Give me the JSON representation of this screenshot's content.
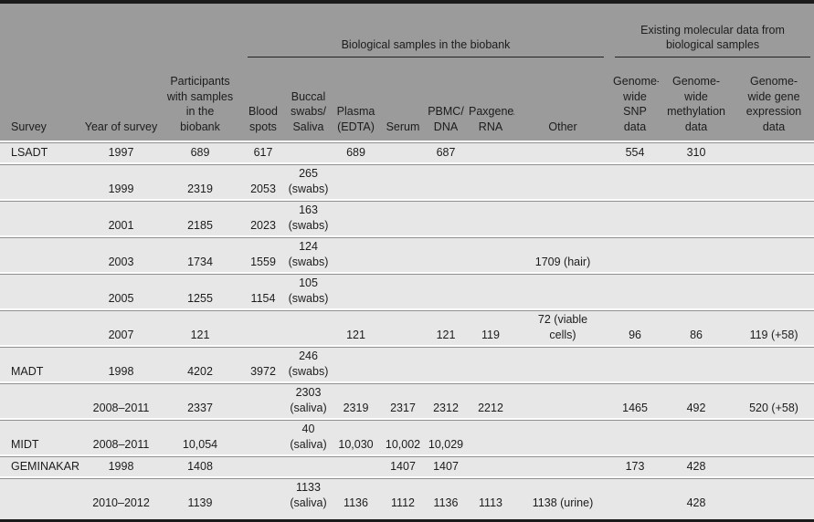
{
  "title": "Biobank samples overview table",
  "colors": {
    "header_bg": "#9b9b9b",
    "row_bg": "#e7e7e7",
    "separator": "#8f8f8f",
    "frame": "#1b1b1b",
    "text": "#1c1c1c",
    "page_bg": "#ffffff"
  },
  "table": {
    "group_headers": [
      {
        "label": "Biological samples in the biobank"
      },
      {
        "label": "Existing molecular data from\nbiological samples"
      }
    ],
    "columns": [
      {
        "key": "survey",
        "label": "Survey"
      },
      {
        "key": "year",
        "label": "Year of survey"
      },
      {
        "key": "participants",
        "label": "Participants\nwith samples\nin the\nbiobank"
      },
      {
        "key": "blood_spots",
        "label": "Blood\nspots"
      },
      {
        "key": "buccal",
        "label": "Buccal\nswabs/\nSaliva"
      },
      {
        "key": "plasma",
        "label": "Plasma\n(EDTA)"
      },
      {
        "key": "serum",
        "label": "Serum"
      },
      {
        "key": "pbmc",
        "label": "PBMC/\nDNA"
      },
      {
        "key": "paxgene",
        "label": "Paxgene/\nRNA"
      },
      {
        "key": "other",
        "label": "Other"
      },
      {
        "key": "snp",
        "label": "Genome-\nwide\nSNP\ndata"
      },
      {
        "key": "methylation",
        "label": "Genome-\nwide\nmethylation\ndata"
      },
      {
        "key": "gene_expression",
        "label": "Genome-\nwide gene\nexpression\ndata"
      }
    ],
    "rows": [
      {
        "survey": "LSADT",
        "year": "1997",
        "participants": "689",
        "blood_spots": "617",
        "buccal": "",
        "plasma": "689",
        "serum": "",
        "pbmc": "687",
        "paxgene": "",
        "other": "",
        "snp": "554",
        "methylation": "310",
        "gene_expression": ""
      },
      {
        "survey": "",
        "year": "1999",
        "participants": "2319",
        "blood_spots": "2053",
        "buccal": "265\n(swabs)",
        "plasma": "",
        "serum": "",
        "pbmc": "",
        "paxgene": "",
        "other": "",
        "snp": "",
        "methylation": "",
        "gene_expression": ""
      },
      {
        "survey": "",
        "year": "2001",
        "participants": "2185",
        "blood_spots": "2023",
        "buccal": "163\n(swabs)",
        "plasma": "",
        "serum": "",
        "pbmc": "",
        "paxgene": "",
        "other": "",
        "snp": "",
        "methylation": "",
        "gene_expression": ""
      },
      {
        "survey": "",
        "year": "2003",
        "participants": "1734",
        "blood_spots": "1559",
        "buccal": "124\n(swabs)",
        "plasma": "",
        "serum": "",
        "pbmc": "",
        "paxgene": "",
        "other": "1709 (hair)",
        "snp": "",
        "methylation": "",
        "gene_expression": ""
      },
      {
        "survey": "",
        "year": "2005",
        "participants": "1255",
        "blood_spots": "1154",
        "buccal": "105\n(swabs)",
        "plasma": "",
        "serum": "",
        "pbmc": "",
        "paxgene": "",
        "other": "",
        "snp": "",
        "methylation": "",
        "gene_expression": ""
      },
      {
        "survey": "",
        "year": "2007",
        "participants": "121",
        "blood_spots": "",
        "buccal": "",
        "plasma": "121",
        "serum": "",
        "pbmc": "121",
        "paxgene": "119",
        "other": "72 (viable\ncells)",
        "snp": "96",
        "methylation": "86",
        "gene_expression": "119 (+58)"
      },
      {
        "survey": "MADT",
        "year": "1998",
        "participants": "4202",
        "blood_spots": "3972",
        "buccal": "246\n(swabs)",
        "plasma": "",
        "serum": "",
        "pbmc": "",
        "paxgene": "",
        "other": "",
        "snp": "",
        "methylation": "",
        "gene_expression": ""
      },
      {
        "survey": "",
        "year": "2008–2011",
        "participants": "2337",
        "blood_spots": "",
        "buccal": "2303\n(saliva)",
        "plasma": "2319",
        "serum": "2317",
        "pbmc": "2312",
        "paxgene": "2212",
        "other": "",
        "snp": "1465",
        "methylation": "492",
        "gene_expression": "520 (+58)"
      },
      {
        "survey": "MIDT",
        "year": "2008–2011",
        "participants": "10,054",
        "blood_spots": "",
        "buccal": "40\n(saliva)",
        "plasma": "10,030",
        "serum": "10,002",
        "pbmc": "10,029",
        "paxgene": "",
        "other": "",
        "snp": "",
        "methylation": "",
        "gene_expression": ""
      },
      {
        "survey": "GEMINAKAR",
        "year": "1998",
        "participants": "1408",
        "blood_spots": "",
        "buccal": "",
        "plasma": "",
        "serum": "1407",
        "pbmc": "1407",
        "paxgene": "",
        "other": "",
        "snp": "173",
        "methylation": "428",
        "gene_expression": ""
      },
      {
        "survey": "",
        "year": "2010–2012",
        "participants": "1139",
        "blood_spots": "",
        "buccal": "1133\n(saliva)",
        "plasma": "1136",
        "serum": "1112",
        "pbmc": "1136",
        "paxgene": "1113",
        "other": "1138 (urine)",
        "snp": "",
        "methylation": "428",
        "gene_expression": ""
      }
    ]
  }
}
